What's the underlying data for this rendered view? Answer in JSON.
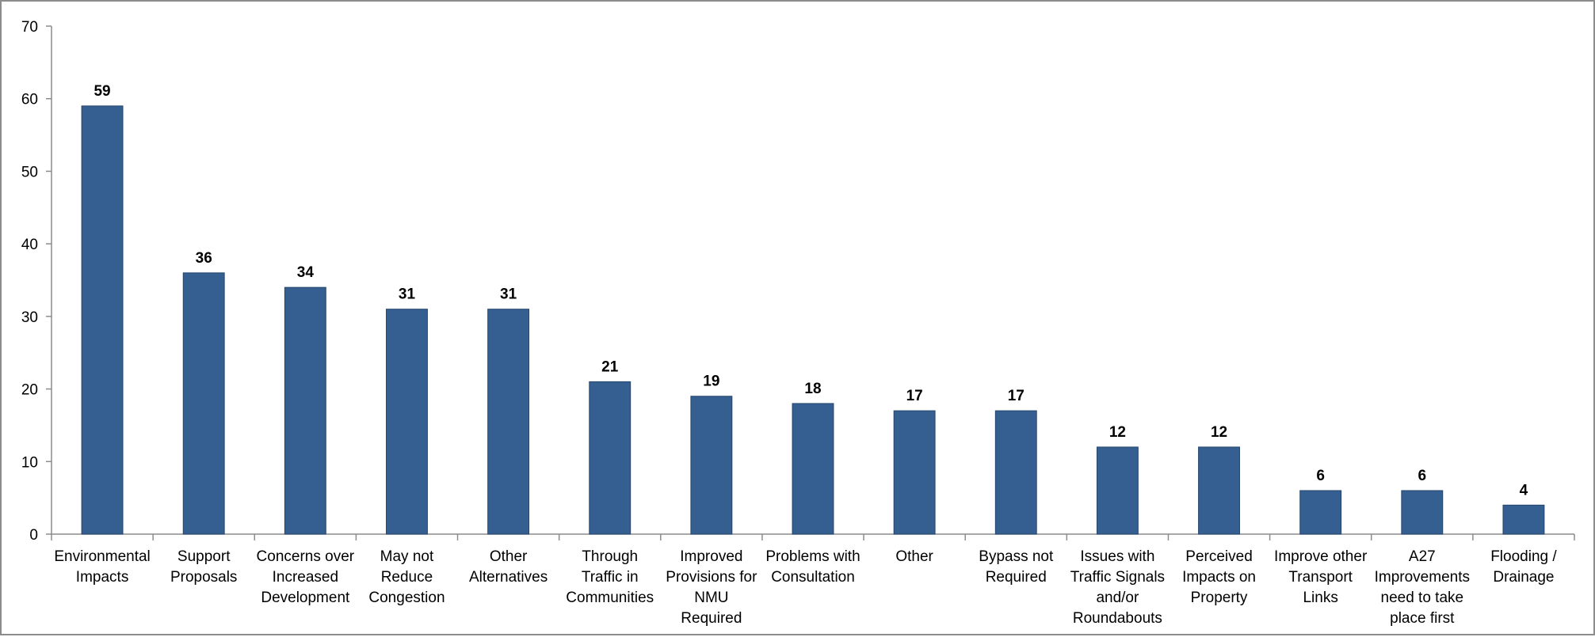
{
  "chart_data": {
    "type": "bar",
    "title": "",
    "xlabel": "",
    "ylabel": "",
    "ylim": [
      0,
      70
    ],
    "yticks": [
      0,
      10,
      20,
      30,
      40,
      50,
      60,
      70
    ],
    "grid": false,
    "legend": "none",
    "bar_color": "#355F91",
    "categories": [
      [
        "Environmental",
        "Impacts"
      ],
      [
        "Support",
        "Proposals"
      ],
      [
        "Concerns over",
        "Increased",
        "Development"
      ],
      [
        "May not",
        "Reduce",
        "Congestion"
      ],
      [
        "Other",
        "Alternatives"
      ],
      [
        "Through",
        "Traffic in",
        "Communities"
      ],
      [
        "Improved",
        "Provisions for",
        "NMU",
        "Required"
      ],
      [
        "Problems with",
        "Consultation"
      ],
      [
        "Other"
      ],
      [
        "Bypass not",
        "Required"
      ],
      [
        "Issues with",
        "Traffic Signals",
        "and/or",
        "Roundabouts"
      ],
      [
        "Perceived",
        "Impacts on",
        "Property"
      ],
      [
        "Improve other",
        "Transport",
        "Links"
      ],
      [
        "A27",
        "Improvements",
        "need to take",
        "place first"
      ],
      [
        "Flooding /",
        "Drainage"
      ]
    ],
    "values": [
      59,
      36,
      34,
      31,
      31,
      21,
      19,
      18,
      17,
      17,
      12,
      12,
      6,
      6,
      4
    ]
  }
}
